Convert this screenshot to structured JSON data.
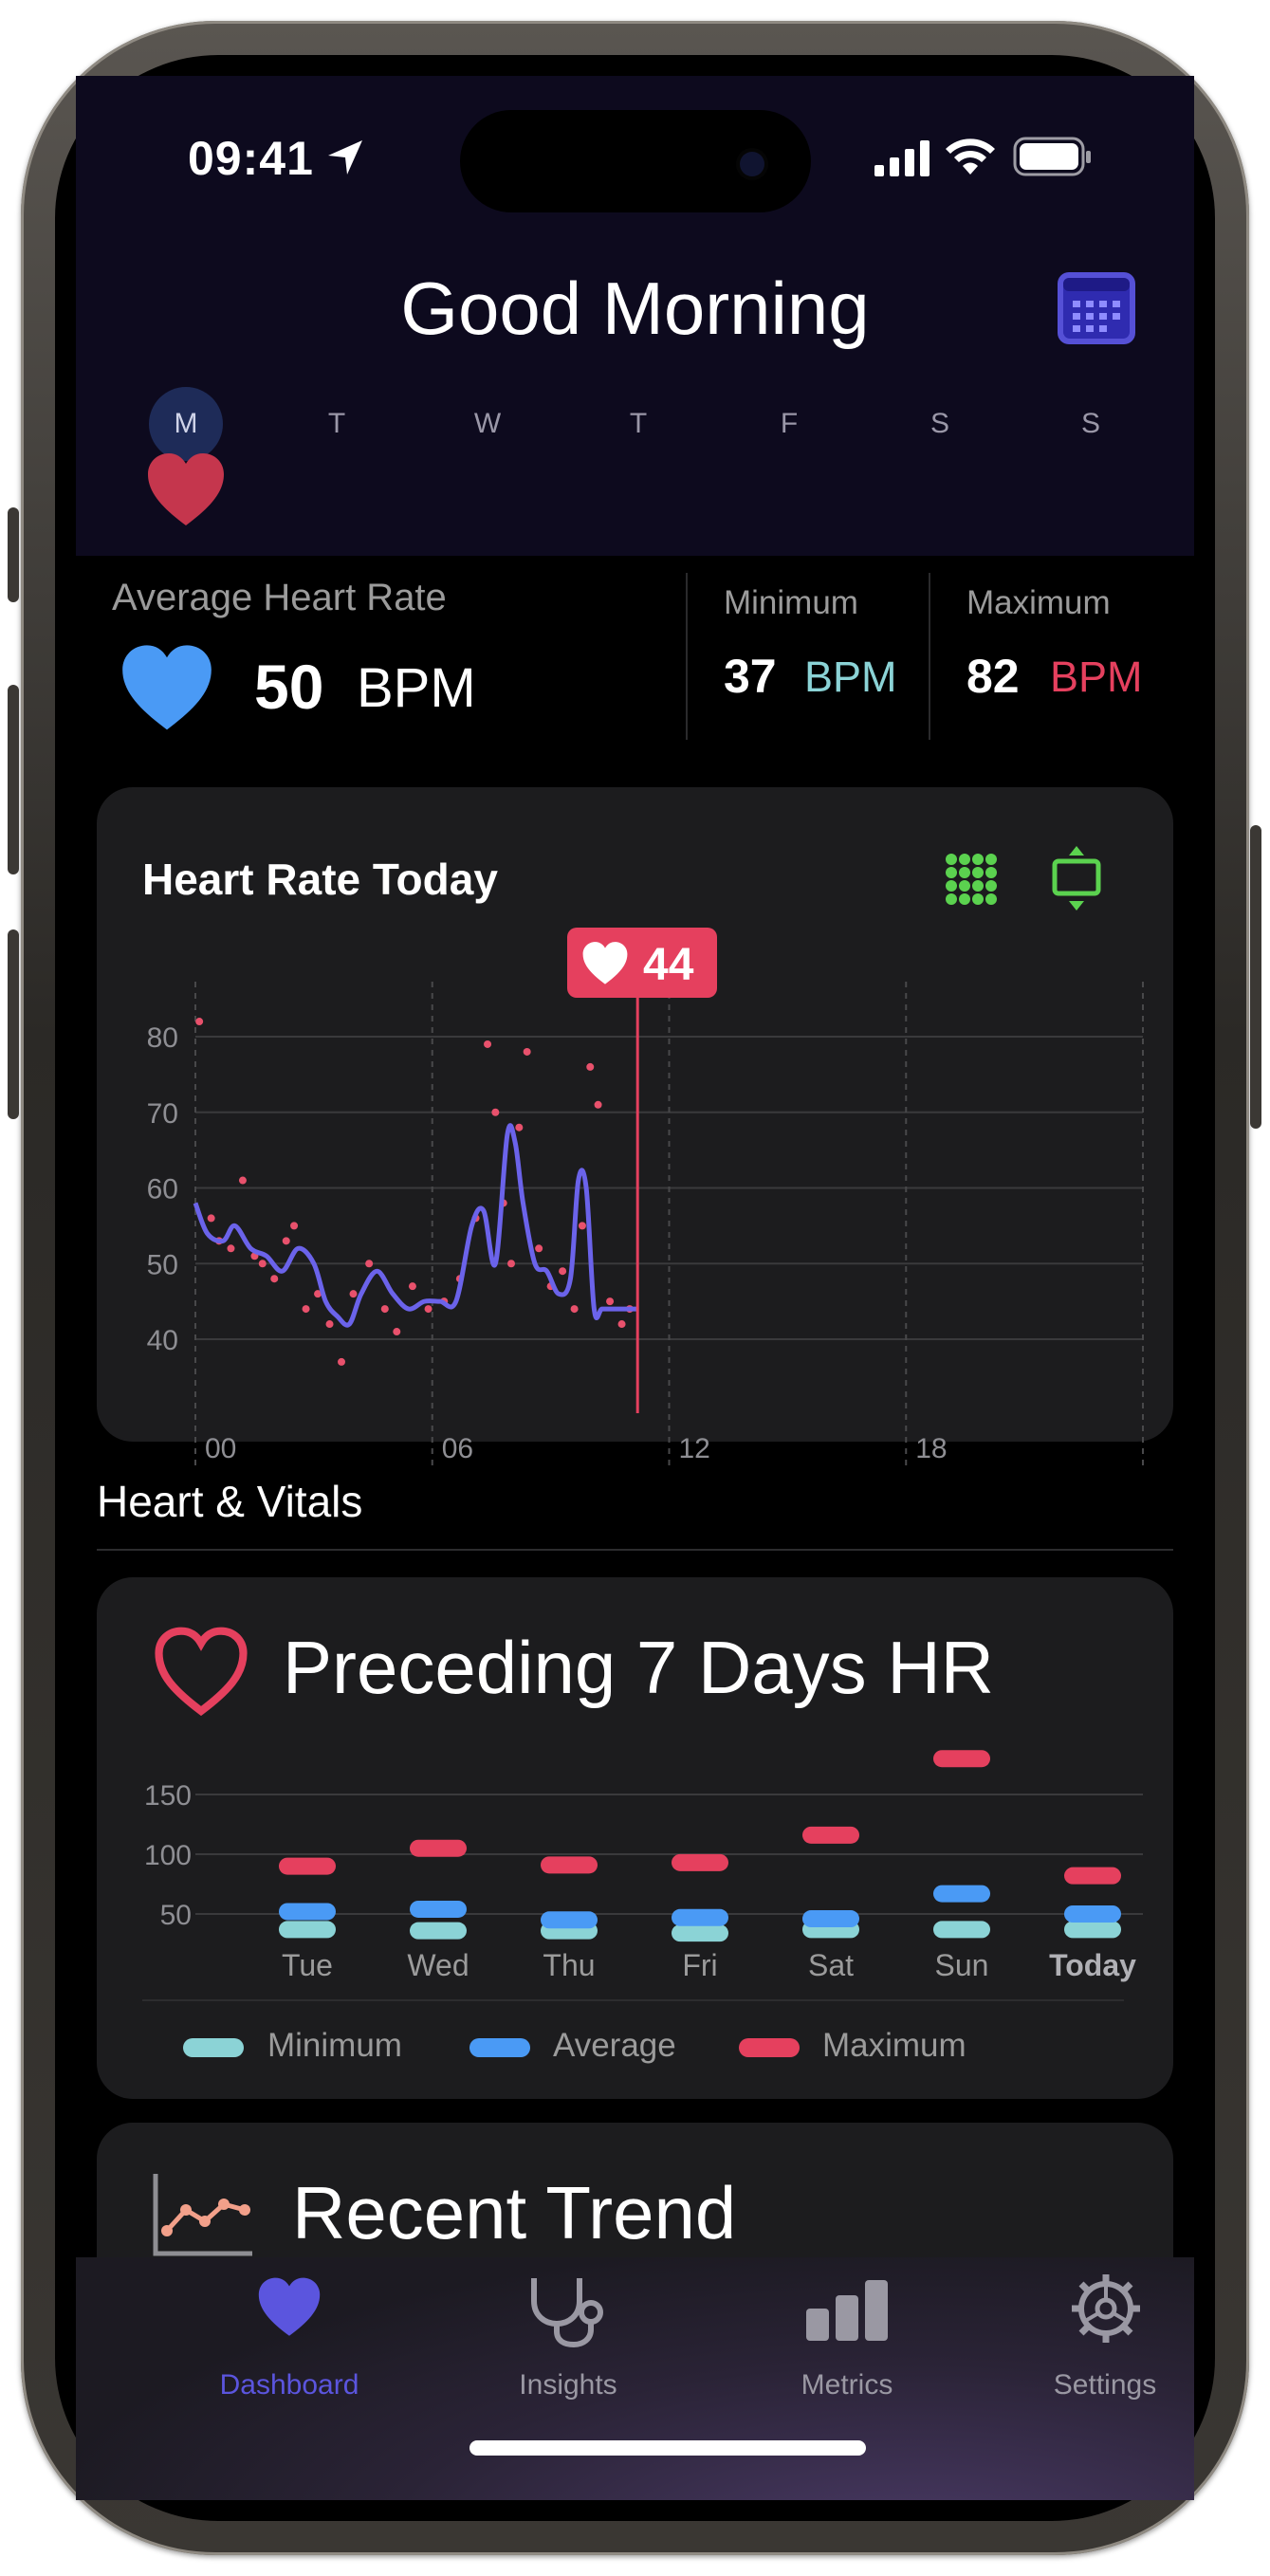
{
  "status": {
    "time": "09:41"
  },
  "header": {
    "greeting": "Good Morning",
    "days": [
      "M",
      "T",
      "W",
      "T",
      "F",
      "S",
      "S"
    ],
    "selected_day_index": 0
  },
  "summary": {
    "avg_label": "Average Heart Rate",
    "avg_value": "50",
    "avg_unit": "BPM",
    "min_label": "Minimum",
    "min_value": "37",
    "min_unit": "BPM",
    "max_label": "Maximum",
    "max_value": "82",
    "max_unit": "BPM"
  },
  "colors": {
    "accent": "#5b55de",
    "heart_red": "#e5405e",
    "blue": "#4a9af5",
    "teal": "#8bd3d6",
    "green": "#5bd24f"
  },
  "heart_rate_today": {
    "title": "Heart Rate Today",
    "badge_value": "44",
    "chart_data": {
      "type": "line",
      "title": "Heart Rate Today",
      "x_ticks": [
        "00",
        "06",
        "12",
        "18"
      ],
      "y_ticks": [
        "80",
        "70",
        "60",
        "50",
        "40"
      ],
      "xlim": [
        0,
        24
      ],
      "ylim": [
        40,
        80
      ],
      "series": [
        {
          "x": [
            0,
            0.3,
            0.7,
            1,
            1.4,
            1.8,
            2.2,
            2.6,
            3,
            3.3,
            3.6,
            3.9,
            4.2,
            4.6,
            5,
            5.4,
            5.8,
            6.2,
            6.6,
            7,
            7.3,
            7.6,
            7.9,
            8.1,
            8.3,
            8.6,
            8.9,
            9.2,
            9.5,
            9.7,
            9.9,
            10.1,
            10.3,
            10.6,
            11,
            11.2
          ],
          "y": [
            58,
            54,
            53,
            55,
            52,
            51,
            49,
            52,
            50,
            45,
            43,
            42,
            46,
            49,
            46,
            44,
            45,
            45,
            45,
            55,
            57,
            50,
            67,
            66,
            58,
            50,
            49,
            46,
            48,
            61,
            60,
            44,
            44,
            44,
            44,
            44
          ]
        },
        {
          "x": [
            0.1,
            0.4,
            0.6,
            0.9,
            1.2,
            1.5,
            1.7,
            2.0,
            2.3,
            2.5,
            2.8,
            3.1,
            3.4,
            3.7,
            4.0,
            4.4,
            4.8,
            5.1,
            5.5,
            5.9,
            6.3,
            6.7,
            7.1,
            7.4,
            7.6,
            7.8,
            8.0,
            8.2,
            8.4,
            8.7,
            9.0,
            9.3,
            9.6,
            9.8,
            10.0,
            10.2,
            10.5,
            10.8,
            11.0
          ],
          "y": [
            82,
            56,
            53,
            52,
            61,
            51,
            50,
            48,
            53,
            55,
            44,
            46,
            42,
            37,
            46,
            50,
            44,
            41,
            47,
            44,
            45,
            48,
            56,
            79,
            70,
            58,
            50,
            68,
            78,
            52,
            47,
            49,
            44,
            55,
            76,
            71,
            45,
            42,
            44
          ]
        }
      ],
      "current_x": 11.2,
      "grid": true
    }
  },
  "vitals": {
    "section_title": "Heart & Vitals",
    "preceding": {
      "title": "Preceding 7 Days HR",
      "chart_data": {
        "type": "range-bars",
        "title": "Preceding 7 Days HR",
        "categories": [
          "Tue",
          "Wed",
          "Thu",
          "Fri",
          "Sat",
          "Sun",
          "Today"
        ],
        "y_ticks": [
          "150",
          "100",
          "50"
        ],
        "ylim": [
          0,
          170
        ],
        "series": [
          {
            "name": "Minimum",
            "values": [
              37,
              36,
              36,
              34,
              37,
              37,
              37
            ]
          },
          {
            "name": "Average",
            "values": [
              52,
              54,
              45,
              47,
              46,
              67,
              50
            ]
          },
          {
            "name": "Maximum",
            "values": [
              90,
              105,
              91,
              93,
              116,
              180,
              82
            ]
          }
        ],
        "legend": [
          "Minimum",
          "Average",
          "Maximum"
        ],
        "legend_position": "bottom"
      }
    },
    "recent": {
      "title": "Recent Trend"
    }
  },
  "tabs": [
    {
      "label": "Dashboard",
      "icon": "heart-icon",
      "active": true
    },
    {
      "label": "Insights",
      "icon": "stethoscope-icon",
      "active": false
    },
    {
      "label": "Metrics",
      "icon": "bar-chart-icon",
      "active": false
    },
    {
      "label": "Settings",
      "icon": "gear-icon",
      "active": false
    }
  ]
}
